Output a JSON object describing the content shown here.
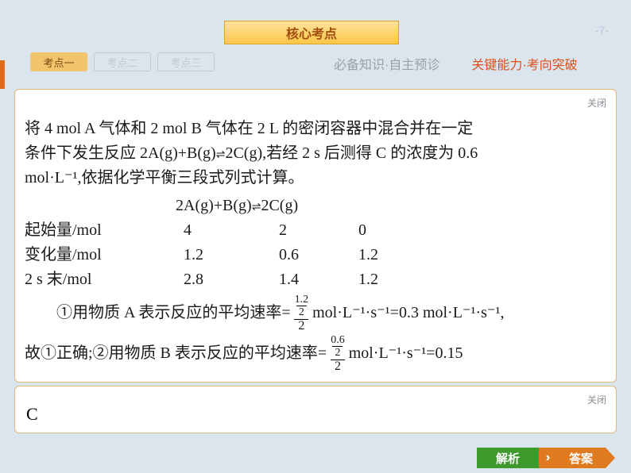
{
  "page_number": "-7-",
  "header": {
    "title": "核心考点"
  },
  "tabs": [
    {
      "label": "考点一",
      "active": true
    },
    {
      "label": "考点二",
      "active": false
    },
    {
      "label": "考点三",
      "active": false
    }
  ],
  "nav": {
    "left": "必备知识·自主预诊",
    "right": "关键能力·考向突破"
  },
  "content": {
    "close_label": "关闭",
    "intro_l1": "将 4 mol A 气体和 2 mol B 气体在 2 L 的密闭容器中混合并在一定",
    "intro_l2_pre": "条件下发生反应 2A(g)+B(g)",
    "intro_l2_post": "2C(g),若经 2 s 后测得 C 的浓度为 0.6",
    "intro_l3": "mol·L⁻¹,依据化学平衡三段式列式计算。",
    "equation_pre": "2A(g)+B(g)",
    "equation_post": "2C(g)",
    "table": {
      "rows": [
        {
          "label": "起始量/mol",
          "a": "4",
          "b": "2",
          "c": "0"
        },
        {
          "label": "变化量/mol",
          "a": "1.2",
          "b": "0.6",
          "c": "1.2"
        },
        {
          "label": "2 s 末/mol",
          "a": "2.8",
          "b": "1.4",
          "c": "1.2"
        }
      ]
    },
    "line1_indent": "　　①用物质 A 表示反应的平均速率=",
    "frac1_top_num": "1.2",
    "frac1_top_den": "2",
    "frac_outer_den": "2",
    "line1_tail": " mol·L⁻¹·s⁻¹=0.3 mol·L⁻¹·s⁻¹,",
    "line2_pre": "故①正确;②用物质 B 表示反应的平均速率=",
    "frac2_top_num": "0.6",
    "frac2_top_den": "2",
    "line2_tail": " mol·L⁻¹·s⁻¹=0.15"
  },
  "answer": {
    "close_label": "关闭",
    "letter": "C"
  },
  "footer": {
    "jiexi": "解析",
    "chev": "››",
    "daan": "答案"
  },
  "colors": {
    "bg": "#dbe5ed",
    "header_grad_top": "#ffe29a",
    "header_grad_bot": "#f9c748",
    "header_text": "#a24c0e",
    "tab_active_bg": "#f2c56d",
    "tab_inactive_border": "#c5c9cd",
    "nav_gray": "#9aa0a6",
    "nav_orange": "#da531e",
    "box_border": "#e2b87a",
    "jiexi_bg": "#3f9a2e",
    "daan_bg": "#e07a1e"
  }
}
